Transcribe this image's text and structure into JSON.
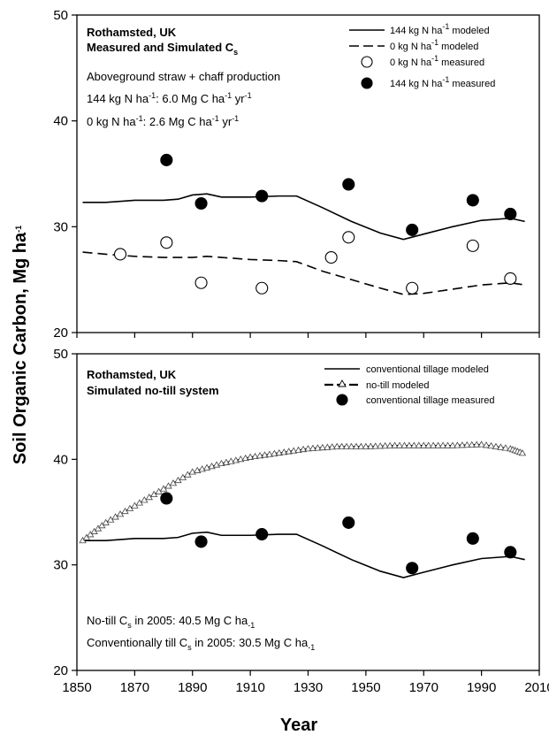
{
  "chart_data": [
    {
      "type": "line",
      "title_lines": [
        "Rothamsted, UK",
        "Measured and Simulated C",
        "s"
      ],
      "xlim": [
        1850,
        2010
      ],
      "ylim": [
        20,
        50
      ],
      "xticks": [
        1850,
        1870,
        1890,
        1910,
        1930,
        1950,
        1970,
        1990,
        2010
      ],
      "yticks": [
        20,
        30,
        40,
        50
      ],
      "annotations": [
        [
          "Aboveground straw + chaff production"
        ],
        [
          "144 kg N ha",
          "-1",
          ": 6.0 Mg C ha",
          "-1",
          " yr",
          "-1"
        ],
        [
          "0 kg N ha",
          "-1",
          ": 2.6 Mg C ha",
          "-1",
          " yr",
          "-1"
        ]
      ],
      "legend_position": "top-right",
      "series": [
        {
          "name": [
            "144 kg N ha",
            "-1",
            " modeled"
          ],
          "style": "solid-line",
          "x": [
            1852,
            1860,
            1870,
            1880,
            1885,
            1890,
            1895,
            1900,
            1910,
            1920,
            1926,
            1935,
            1945,
            1955,
            1963,
            1970,
            1980,
            1990,
            2000,
            2005
          ],
          "y": [
            32.3,
            32.3,
            32.5,
            32.5,
            32.6,
            33.0,
            33.1,
            32.8,
            32.8,
            32.9,
            32.9,
            31.8,
            30.5,
            29.4,
            28.8,
            29.3,
            30.0,
            30.6,
            30.8,
            30.5
          ]
        },
        {
          "name": [
            "0 kg N ha",
            "-1",
            " modeled"
          ],
          "style": "dashed-line",
          "x": [
            1852,
            1860,
            1870,
            1880,
            1890,
            1895,
            1900,
            1910,
            1920,
            1926,
            1935,
            1945,
            1955,
            1963,
            1970,
            1980,
            1990,
            2000,
            2005
          ],
          "y": [
            27.6,
            27.4,
            27.2,
            27.1,
            27.1,
            27.2,
            27.1,
            26.9,
            26.8,
            26.7,
            25.8,
            25.0,
            24.2,
            23.6,
            23.7,
            24.1,
            24.5,
            24.7,
            24.5
          ]
        },
        {
          "name": [
            "0 kg N ha",
            "-1",
            " measured"
          ],
          "style": "open-circle",
          "x": [
            1865,
            1881,
            1893,
            1914,
            1938,
            1944,
            1966,
            1987,
            2000
          ],
          "y": [
            27.4,
            28.5,
            24.7,
            24.2,
            27.1,
            29.0,
            24.2,
            28.2,
            25.1
          ]
        },
        {
          "name": [
            "144 kg N ha",
            "-1",
            " measured"
          ],
          "style": "filled-circle",
          "x": [
            1881,
            1893,
            1914,
            1944,
            1966,
            1987,
            2000
          ],
          "y": [
            36.3,
            32.2,
            32.9,
            34.0,
            29.7,
            32.5,
            31.2
          ]
        }
      ]
    },
    {
      "type": "line",
      "title_lines": [
        "Rothamsted, UK",
        "Simulated no-till system"
      ],
      "xlim": [
        1850,
        2010
      ],
      "ylim": [
        20,
        50
      ],
      "xticks": [
        1850,
        1870,
        1890,
        1910,
        1930,
        1950,
        1970,
        1990,
        2010
      ],
      "yticks": [
        20,
        30,
        40,
        50
      ],
      "annotations": [
        [
          "No-till C",
          "s",
          " in 2005: 40.5 Mg C ha",
          "-1"
        ],
        [
          "Conventionally till C",
          "s",
          " in 2005: 30.5 Mg C ha",
          "-1"
        ]
      ],
      "legend_position": "top-right",
      "series": [
        {
          "name": [
            "conventional tillage modeled"
          ],
          "style": "solid-line",
          "x": [
            1852,
            1860,
            1870,
            1880,
            1885,
            1890,
            1895,
            1900,
            1910,
            1920,
            1926,
            1935,
            1945,
            1955,
            1963,
            1970,
            1980,
            1990,
            2000,
            2005
          ],
          "y": [
            32.3,
            32.3,
            32.5,
            32.5,
            32.6,
            33.0,
            33.1,
            32.8,
            32.8,
            32.9,
            32.9,
            31.8,
            30.5,
            29.4,
            28.8,
            29.3,
            30.0,
            30.6,
            30.8,
            30.5
          ]
        },
        {
          "name": [
            "no-till modeled"
          ],
          "style": "dashed-triangle",
          "x": [
            1852,
            1860,
            1870,
            1880,
            1890,
            1900,
            1910,
            1920,
            1930,
            1940,
            1950,
            1960,
            1970,
            1980,
            1990,
            2000,
            2005
          ],
          "y": [
            32.3,
            34.0,
            35.6,
            37.2,
            38.8,
            39.6,
            40.2,
            40.6,
            41.0,
            41.2,
            41.2,
            41.3,
            41.3,
            41.3,
            41.4,
            41.0,
            40.5
          ]
        },
        {
          "name": [
            "conventional tillage measured"
          ],
          "style": "filled-circle",
          "x": [
            1881,
            1893,
            1914,
            1944,
            1966,
            1987,
            2000
          ],
          "y": [
            36.3,
            32.2,
            32.9,
            34.0,
            29.7,
            32.5,
            31.2
          ]
        }
      ]
    }
  ],
  "shared": {
    "ylabel": [
      "Soil Organic Carbon, Mg ha",
      "-1"
    ],
    "xlabel": "Year"
  }
}
